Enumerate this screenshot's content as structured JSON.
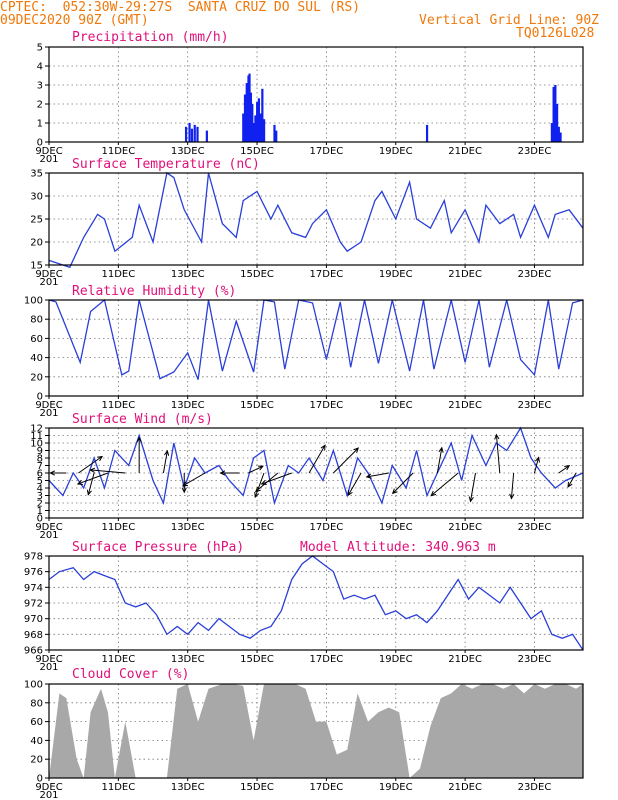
{
  "header": {
    "line1": "CPTEC:  052:30W-29:27S  SANTA CRUZ DO SUL (RS)",
    "line2": "09DEC2020 90Z (GMT)",
    "grid_note": "Vertical Grid Line: 90Z",
    "code": "TQ0126L028"
  },
  "colors": {
    "line": "#2a3fd8",
    "bar": "#1020ee",
    "cloud": "#a8a8a8",
    "title": "#e0107a",
    "header": "#f0780a",
    "arrow": "#000000"
  },
  "x_axis": {
    "labels": [
      "9DEC",
      "11DEC",
      "13DEC",
      "15DEC",
      "17DEC",
      "19DEC",
      "21DEC",
      "23DEC"
    ],
    "label_days": [
      0,
      2,
      4,
      6,
      8,
      10,
      12,
      14
    ],
    "range_days": [
      0,
      15.4
    ],
    "clipped_label": "201"
  },
  "chart_data": [
    {
      "type": "bar",
      "title": "Precipitation (mm/h)",
      "ylim": [
        0,
        5
      ],
      "yticks": [
        0,
        1,
        2,
        3,
        4,
        5
      ],
      "x": [
        3.95,
        4.05,
        4.12,
        4.2,
        4.28,
        4.55,
        5.6,
        5.65,
        5.7,
        5.75,
        5.78,
        5.82,
        5.86,
        5.9,
        5.95,
        6.0,
        6.05,
        6.1,
        6.15,
        6.2,
        6.5,
        6.55,
        10.9,
        14.5,
        14.55,
        14.6,
        14.65,
        14.7,
        14.75
      ],
      "values": [
        0.8,
        1.0,
        0.7,
        0.9,
        0.8,
        0.6,
        1.5,
        2.5,
        3.1,
        3.5,
        3.6,
        2.6,
        2.0,
        1.0,
        1.4,
        2.1,
        2.3,
        1.5,
        2.8,
        1.2,
        0.9,
        0.6,
        0.9,
        1.0,
        2.9,
        3.0,
        2.0,
        0.8,
        0.5
      ]
    },
    {
      "type": "line",
      "title": "Surface Temperature (nC)",
      "ylim": [
        15,
        35
      ],
      "yticks": [
        15,
        20,
        25,
        30,
        35
      ],
      "x": [
        0,
        0.4,
        0.6,
        1,
        1.4,
        1.6,
        1.9,
        2.4,
        2.6,
        3,
        3.4,
        3.6,
        3.9,
        4.4,
        4.6,
        5,
        5.4,
        5.6,
        6,
        6.4,
        6.6,
        7,
        7.4,
        7.6,
        8,
        8.4,
        8.6,
        9,
        9.4,
        9.6,
        10,
        10.4,
        10.6,
        11,
        11.4,
        11.6,
        12,
        12.4,
        12.6,
        13,
        13.4,
        13.6,
        14,
        14.4,
        14.6,
        15,
        15.4
      ],
      "values": [
        16,
        15,
        14.5,
        21,
        26,
        25,
        18,
        21,
        28,
        20,
        35,
        34,
        27,
        20,
        35,
        24,
        21,
        29,
        31,
        25,
        28,
        22,
        21,
        24,
        27,
        20,
        18,
        20,
        29,
        31,
        25,
        33,
        25,
        23,
        29,
        22,
        27,
        20,
        28,
        24,
        26,
        21,
        28,
        21,
        26,
        27,
        23
      ],
      "series": [
        {
          "name": "",
          "color": "#2a3fd8"
        }
      ]
    },
    {
      "type": "line",
      "title": "Relative Humidity (%)",
      "ylim": [
        0,
        100
      ],
      "yticks": [
        0,
        20,
        40,
        60,
        80,
        100
      ],
      "x": [
        0,
        0.2,
        0.9,
        1.2,
        1.6,
        2.1,
        2.3,
        2.6,
        3.2,
        3.6,
        4,
        4.3,
        4.6,
        5.0,
        5.4,
        5.9,
        6.2,
        6.5,
        6.8,
        7.2,
        7.6,
        8,
        8.4,
        8.7,
        9.1,
        9.5,
        9.9,
        10.4,
        10.8,
        11.1,
        11.6,
        12,
        12.4,
        12.7,
        13.2,
        13.6,
        14,
        14.4,
        14.7,
        15.1,
        15.4
      ],
      "values": [
        100,
        98,
        35,
        88,
        100,
        22,
        26,
        100,
        18,
        25,
        45,
        17,
        100,
        26,
        78,
        25,
        100,
        98,
        28,
        100,
        97,
        38,
        98,
        30,
        100,
        34,
        100,
        26,
        100,
        28,
        100,
        35,
        100,
        30,
        100,
        38,
        22,
        100,
        28,
        97,
        100
      ]
    },
    {
      "type": "line",
      "title": "Surface Wind (m/s)",
      "ylim": [
        0,
        12
      ],
      "yticks": [
        0,
        1,
        2,
        3,
        4,
        5,
        6,
        7,
        8,
        9,
        10,
        11,
        12
      ],
      "x": [
        0,
        0.4,
        0.7,
        1,
        1.3,
        1.6,
        1.9,
        2.3,
        2.6,
        3,
        3.3,
        3.6,
        3.9,
        4.2,
        4.5,
        4.9,
        5.2,
        5.6,
        5.9,
        6.2,
        6.5,
        6.9,
        7.2,
        7.5,
        7.9,
        8.2,
        8.6,
        8.9,
        9.2,
        9.6,
        9.9,
        10.3,
        10.6,
        10.9,
        11.2,
        11.6,
        11.9,
        12.2,
        12.6,
        12.9,
        13.2,
        13.6,
        13.9,
        14.2,
        14.6,
        14.9,
        15.4
      ],
      "values": [
        5,
        3,
        6,
        4,
        8,
        4,
        9,
        7,
        11,
        5,
        2,
        10,
        4,
        8,
        6,
        7,
        5,
        3,
        8,
        9,
        2,
        7,
        6,
        8,
        5,
        9,
        3,
        8,
        6,
        2,
        7,
        4,
        9,
        3,
        6,
        10,
        5,
        11,
        7,
        10,
        9,
        12,
        8,
        6,
        4,
        5,
        6
      ],
      "arrows": [
        {
          "x": 0.5,
          "dir_deg": 180,
          "speed": 5
        },
        {
          "x": 0.85,
          "dir_deg": 35,
          "speed": 9
        },
        {
          "x": 1.3,
          "dir_deg": 255,
          "speed": 7
        },
        {
          "x": 1.7,
          "dir_deg": 200,
          "speed": 10
        },
        {
          "x": 2.2,
          "dir_deg": 175,
          "speed": 11
        },
        {
          "x": 2.6,
          "dir_deg": 90,
          "speed": 11
        },
        {
          "x": 3.3,
          "dir_deg": 80,
          "speed": 7
        },
        {
          "x": 3.9,
          "dir_deg": 270,
          "speed": 6
        },
        {
          "x": 4.5,
          "dir_deg": 210,
          "speed": 8
        },
        {
          "x": 5.5,
          "dir_deg": 180,
          "speed": 6
        },
        {
          "x": 5.75,
          "dir_deg": 25,
          "speed": 5
        },
        {
          "x": 6.2,
          "dir_deg": 250,
          "speed": 8
        },
        {
          "x": 6.6,
          "dir_deg": 220,
          "speed": 9
        },
        {
          "x": 7.0,
          "dir_deg": 200,
          "speed": 10
        },
        {
          "x": 7.5,
          "dir_deg": 60,
          "speed": 10
        },
        {
          "x": 8.2,
          "dir_deg": 45,
          "speed": 11
        },
        {
          "x": 9.0,
          "dir_deg": 240,
          "speed": 8
        },
        {
          "x": 9.8,
          "dir_deg": 190,
          "speed": 7
        },
        {
          "x": 10.5,
          "dir_deg": 225,
          "speed": 9
        },
        {
          "x": 11.2,
          "dir_deg": 80,
          "speed": 8
        },
        {
          "x": 11.8,
          "dir_deg": 220,
          "speed": 11
        },
        {
          "x": 12.3,
          "dir_deg": 260,
          "speed": 9
        },
        {
          "x": 13.0,
          "dir_deg": 95,
          "speed": 12
        },
        {
          "x": 13.4,
          "dir_deg": 265,
          "speed": 8
        },
        {
          "x": 14.0,
          "dir_deg": 75,
          "speed": 5
        },
        {
          "x": 14.7,
          "dir_deg": 35,
          "speed": 4
        },
        {
          "x": 15.2,
          "dir_deg": 240,
          "speed": 5
        }
      ]
    },
    {
      "type": "line",
      "title": "Surface Pressure (hPa)",
      "extra_label": "Model Altitude: 340.963  m",
      "ylim": [
        966,
        978
      ],
      "yticks": [
        966,
        968,
        970,
        972,
        974,
        976,
        978
      ],
      "x": [
        0,
        0.3,
        0.7,
        1,
        1.3,
        1.6,
        1.9,
        2.2,
        2.5,
        2.8,
        3.1,
        3.4,
        3.7,
        4,
        4.3,
        4.6,
        4.9,
        5.2,
        5.5,
        5.8,
        6.1,
        6.4,
        6.7,
        7,
        7.3,
        7.6,
        7.9,
        8.2,
        8.5,
        8.8,
        9.1,
        9.4,
        9.7,
        10,
        10.3,
        10.6,
        10.9,
        11.2,
        11.5,
        11.8,
        12.1,
        12.4,
        12.7,
        13,
        13.3,
        13.6,
        13.9,
        14.2,
        14.5,
        14.8,
        15.1,
        15.4
      ],
      "values": [
        975,
        976,
        976.5,
        975,
        976,
        975.5,
        975,
        972,
        971.5,
        972,
        970.5,
        968,
        969,
        968,
        969.5,
        968.5,
        970,
        969,
        968,
        967.5,
        968.5,
        969,
        971,
        975,
        977,
        978,
        977,
        976,
        972.5,
        973,
        972.5,
        973,
        970.5,
        971,
        970,
        970.5,
        969.5,
        971,
        973,
        975,
        972.5,
        974,
        973,
        972,
        974,
        972,
        970,
        971,
        968,
        967.5,
        968,
        966
      ]
    },
    {
      "type": "area",
      "title": "Cloud Cover (%)",
      "ylim": [
        0,
        100
      ],
      "yticks": [
        0,
        20,
        40,
        60,
        80,
        100
      ],
      "x": [
        0,
        0.3,
        0.5,
        0.8,
        1.0,
        1.2,
        1.5,
        1.7,
        1.9,
        2.2,
        2.5,
        2.8,
        3.1,
        3.4,
        3.7,
        4.0,
        4.3,
        4.6,
        5.0,
        5.3,
        5.6,
        5.9,
        6.2,
        6.5,
        6.8,
        7.1,
        7.4,
        7.7,
        8.0,
        8.3,
        8.6,
        8.9,
        9.2,
        9.5,
        9.8,
        10.1,
        10.4,
        10.7,
        11.0,
        11.3,
        11.6,
        11.9,
        12.2,
        12.5,
        12.8,
        13.1,
        13.4,
        13.7,
        14.0,
        14.3,
        14.6,
        14.9,
        15.2,
        15.4
      ],
      "values": [
        0,
        90,
        85,
        20,
        0,
        70,
        95,
        70,
        0,
        60,
        0,
        0,
        0,
        0,
        95,
        100,
        60,
        95,
        100,
        100,
        98,
        40,
        100,
        100,
        100,
        100,
        95,
        60,
        60,
        25,
        30,
        90,
        60,
        70,
        75,
        70,
        0,
        10,
        55,
        85,
        90,
        100,
        95,
        100,
        100,
        95,
        100,
        90,
        100,
        95,
        100,
        100,
        95,
        100
      ]
    }
  ]
}
